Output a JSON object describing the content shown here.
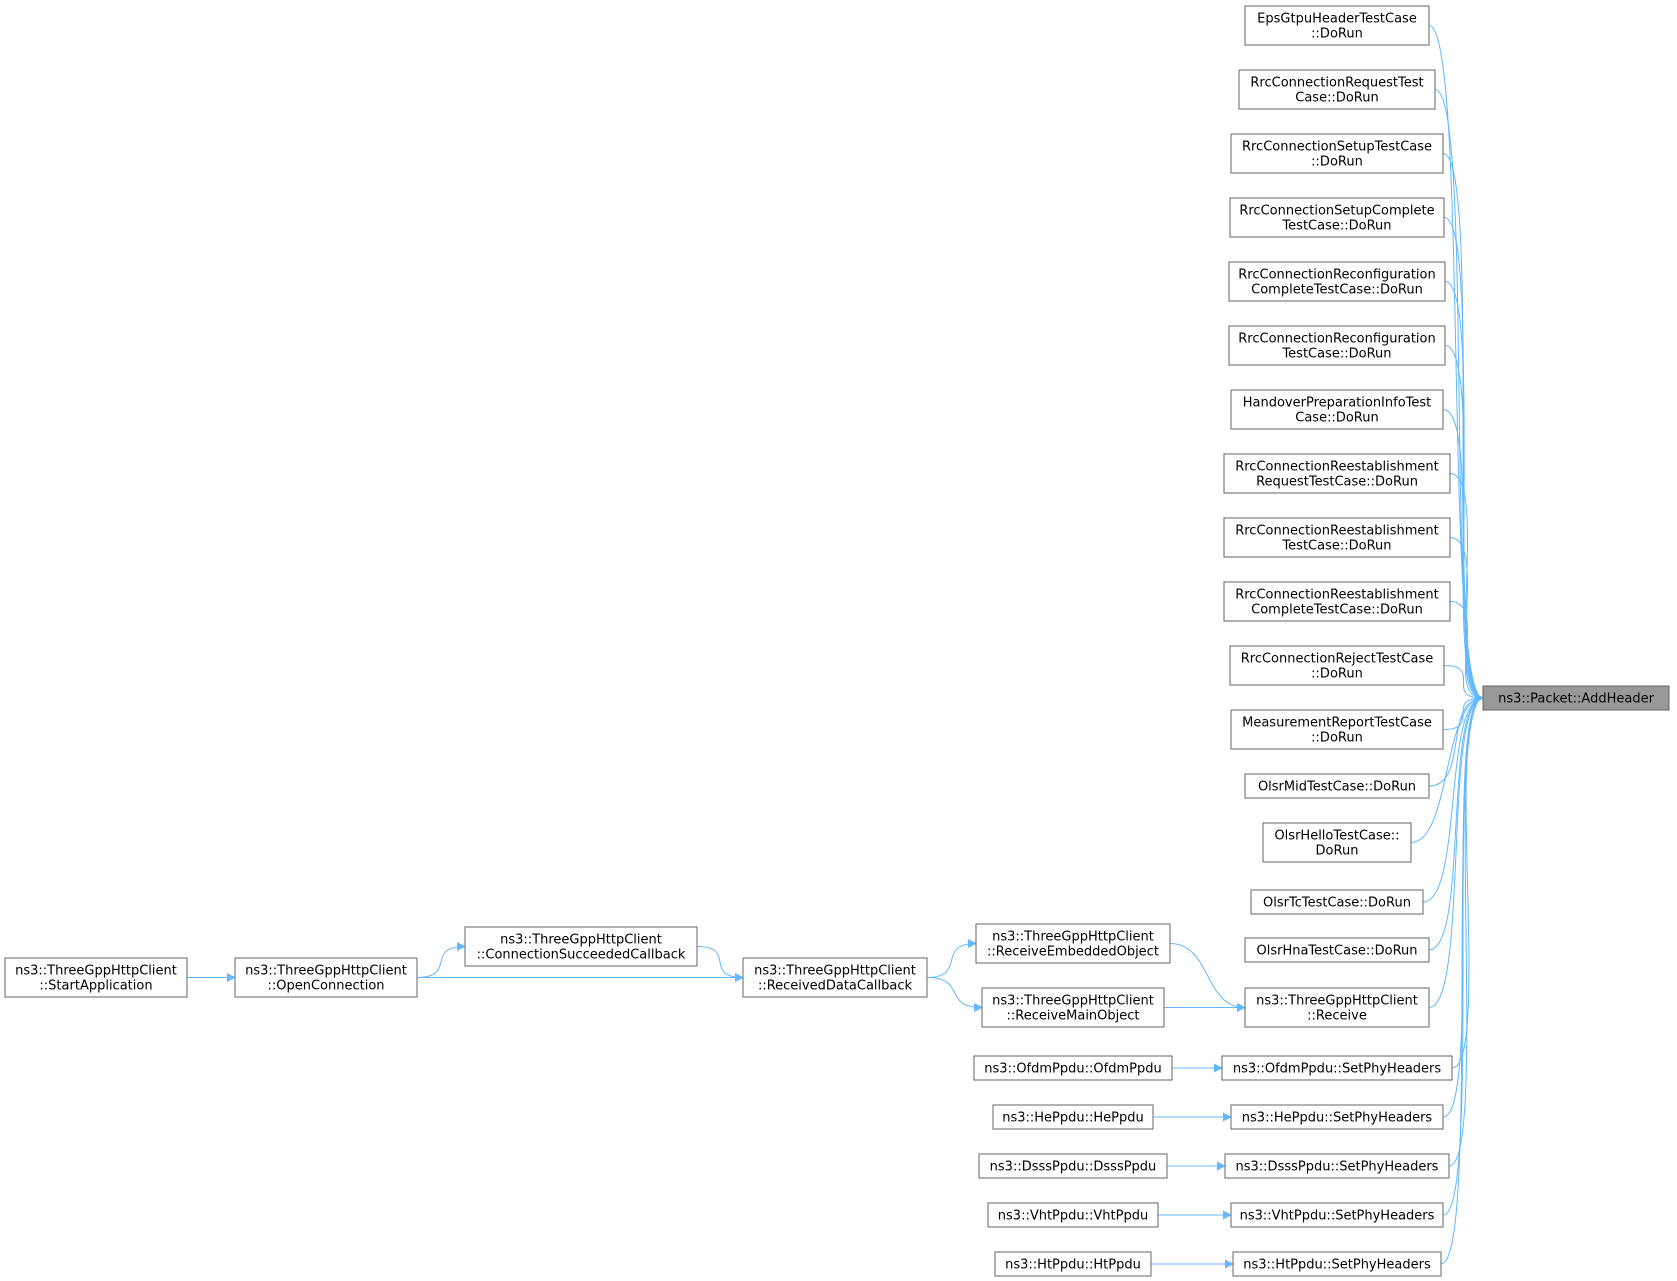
{
  "graph": {
    "target": {
      "id": "target",
      "lines": [
        "ns3::Packet::AddHeader"
      ],
      "fill": "#999999",
      "highlighted": true
    },
    "nodes": [
      {
        "id": "n1",
        "lines": [
          "EpsGtpuHeaderTestCase",
          "::DoRun"
        ]
      },
      {
        "id": "n2",
        "lines": [
          "RrcConnectionRequestTest",
          "Case::DoRun"
        ]
      },
      {
        "id": "n3",
        "lines": [
          "RrcConnectionSetupTestCase",
          "::DoRun"
        ]
      },
      {
        "id": "n4",
        "lines": [
          "RrcConnectionSetupComplete",
          "TestCase::DoRun"
        ]
      },
      {
        "id": "n5",
        "lines": [
          "RrcConnectionReconfiguration",
          "CompleteTestCase::DoRun"
        ]
      },
      {
        "id": "n6",
        "lines": [
          "RrcConnectionReconfiguration",
          "TestCase::DoRun"
        ]
      },
      {
        "id": "n7",
        "lines": [
          "HandoverPreparationInfoTest",
          "Case::DoRun"
        ]
      },
      {
        "id": "n8",
        "lines": [
          "RrcConnectionReestablishment",
          "RequestTestCase::DoRun"
        ]
      },
      {
        "id": "n9",
        "lines": [
          "RrcConnectionReestablishment",
          "TestCase::DoRun"
        ]
      },
      {
        "id": "n10",
        "lines": [
          "RrcConnectionReestablishment",
          "CompleteTestCase::DoRun"
        ]
      },
      {
        "id": "n11",
        "lines": [
          "RrcConnectionRejectTestCase",
          "::DoRun"
        ]
      },
      {
        "id": "n12",
        "lines": [
          "MeasurementReportTestCase",
          "::DoRun"
        ]
      },
      {
        "id": "n13",
        "lines": [
          "OlsrMidTestCase::DoRun"
        ]
      },
      {
        "id": "n14",
        "lines": [
          "OlsrHelloTestCase::",
          "DoRun"
        ]
      },
      {
        "id": "n15",
        "lines": [
          "OlsrTcTestCase::DoRun"
        ]
      },
      {
        "id": "n16",
        "lines": [
          "OlsrHnaTestCase::DoRun"
        ]
      },
      {
        "id": "n17",
        "lines": [
          "ns3::ThreeGppHttpClient",
          "::Receive"
        ]
      },
      {
        "id": "n18",
        "lines": [
          "ns3::OfdmPpdu::SetPhyHeaders"
        ]
      },
      {
        "id": "n19",
        "lines": [
          "ns3::HePpdu::SetPhyHeaders"
        ]
      },
      {
        "id": "n20",
        "lines": [
          "ns3::DsssPpdu::SetPhyHeaders"
        ]
      },
      {
        "id": "n21",
        "lines": [
          "ns3::VhtPpdu::SetPhyHeaders"
        ]
      },
      {
        "id": "n22",
        "lines": [
          "ns3::HtPpdu::SetPhyHeaders"
        ]
      },
      {
        "id": "n23",
        "lines": [
          "ns3::ThreeGppHttpClient",
          "::ReceiveEmbeddedObject"
        ]
      },
      {
        "id": "n24",
        "lines": [
          "ns3::ThreeGppHttpClient",
          "::ReceiveMainObject"
        ]
      },
      {
        "id": "n25",
        "lines": [
          "ns3::OfdmPpdu::OfdmPpdu"
        ]
      },
      {
        "id": "n26",
        "lines": [
          "ns3::HePpdu::HePpdu"
        ]
      },
      {
        "id": "n27",
        "lines": [
          "ns3::DsssPpdu::DsssPpdu"
        ]
      },
      {
        "id": "n28",
        "lines": [
          "ns3::VhtPpdu::VhtPpdu"
        ]
      },
      {
        "id": "n29",
        "lines": [
          "ns3::HtPpdu::HtPpdu"
        ]
      },
      {
        "id": "n30",
        "lines": [
          "ns3::ThreeGppHttpClient",
          "::ReceivedDataCallback"
        ]
      },
      {
        "id": "n31",
        "lines": [
          "ns3::ThreeGppHttpClient",
          "::ConnectionSucceededCallback"
        ]
      },
      {
        "id": "n32",
        "lines": [
          "ns3::ThreeGppHttpClient",
          "::OpenConnection"
        ]
      },
      {
        "id": "n33",
        "lines": [
          "ns3::ThreeGppHttpClient",
          "::StartApplication"
        ]
      }
    ],
    "edges": [
      [
        "n1",
        "target"
      ],
      [
        "n2",
        "target"
      ],
      [
        "n3",
        "target"
      ],
      [
        "n4",
        "target"
      ],
      [
        "n5",
        "target"
      ],
      [
        "n6",
        "target"
      ],
      [
        "n7",
        "target"
      ],
      [
        "n8",
        "target"
      ],
      [
        "n9",
        "target"
      ],
      [
        "n10",
        "target"
      ],
      [
        "n11",
        "target"
      ],
      [
        "n12",
        "target"
      ],
      [
        "n13",
        "target"
      ],
      [
        "n14",
        "target"
      ],
      [
        "n15",
        "target"
      ],
      [
        "n16",
        "target"
      ],
      [
        "n17",
        "target"
      ],
      [
        "n18",
        "target"
      ],
      [
        "n19",
        "target"
      ],
      [
        "n20",
        "target"
      ],
      [
        "n21",
        "target"
      ],
      [
        "n22",
        "target"
      ],
      [
        "n23",
        "n17"
      ],
      [
        "n24",
        "n17"
      ],
      [
        "n25",
        "n18"
      ],
      [
        "n26",
        "n19"
      ],
      [
        "n27",
        "n20"
      ],
      [
        "n28",
        "n21"
      ],
      [
        "n29",
        "n22"
      ],
      [
        "n30",
        "n23"
      ],
      [
        "n30",
        "n24"
      ],
      [
        "n31",
        "n30"
      ],
      [
        "n32",
        "n30"
      ],
      [
        "n32",
        "n31"
      ],
      [
        "n33",
        "n32"
      ]
    ],
    "edge_color": "#63b8ff",
    "node_border_color": "#666666"
  }
}
